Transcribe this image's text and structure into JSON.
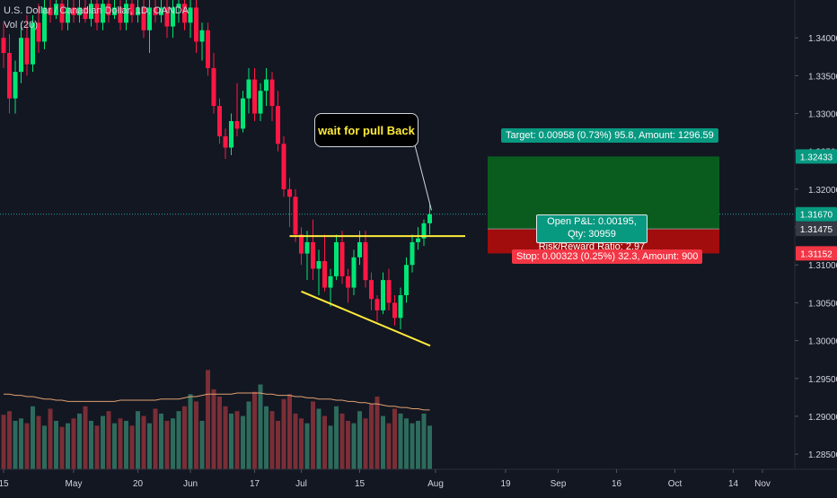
{
  "legend": {
    "symbol": "U.S. Dollar / Canadian Dollar, 1D, OANDA",
    "indicator": "Vol (20)"
  },
  "annotation": "wait for pull Back",
  "position": {
    "target_label": "Target: 0.00958 (0.73%) 95.8, Amount: 1296.59",
    "stop_label": "Stop: 0.00323 (0.25%) 32.3, Amount: 900",
    "pnl_label": "Open P&L: 0.00195, Qty: 30959",
    "rr_label": "Risk/Reward Ratio: 2.97",
    "target_price": 1.32433,
    "entry_price": 1.31475,
    "stop_price": 1.31152,
    "current_price": 1.3167
  },
  "colors": {
    "background": "#131722",
    "up": "#26a69a",
    "up_bright": "#00e676",
    "down": "#ef5350",
    "down_bright": "#ff1744",
    "text": "#d1d4dc",
    "yellow": "#ffeb3b",
    "target_zone": "#0a5c1e",
    "stop_zone": "#a10d0d",
    "vol_ma": "#e0a070"
  },
  "chart_data": {
    "type": "candlestick",
    "title": "U.S. Dollar / Canadian Dollar, 1D, OANDA",
    "ylim": [
      1.283,
      1.345
    ],
    "y_ticks": [
      "1.34000",
      "1.33500",
      "1.33000",
      "1.32500",
      "1.32000",
      "1.31500",
      "1.31000",
      "1.30500",
      "1.30000",
      "1.29500",
      "1.29000",
      "1.28500"
    ],
    "x_ticks": [
      {
        "label": "15",
        "index": 0
      },
      {
        "label": "May",
        "index": 12
      },
      {
        "label": "20",
        "index": 23
      },
      {
        "label": "Jun",
        "index": 32
      },
      {
        "label": "17",
        "index": 43
      },
      {
        "label": "Jul",
        "index": 51
      },
      {
        "label": "15",
        "index": 61
      },
      {
        "label": "Aug",
        "index": 74
      },
      {
        "label": "19",
        "index": 86
      },
      {
        "label": "Sep",
        "index": 95
      },
      {
        "label": "16",
        "index": 105
      },
      {
        "label": "Oct",
        "index": 115
      },
      {
        "label": "14",
        "index": 125
      },
      {
        "label": "Nov",
        "index": 130
      }
    ],
    "slot_count": 135,
    "candles": [
      [
        1.34,
        1.342,
        1.336,
        1.338
      ],
      [
        1.338,
        1.3405,
        1.33,
        1.332
      ],
      [
        1.332,
        1.337,
        1.33,
        1.3355
      ],
      [
        1.3355,
        1.342,
        1.334,
        1.34
      ],
      [
        1.34,
        1.343,
        1.335,
        1.3365
      ],
      [
        1.3365,
        1.343,
        1.3355,
        1.342
      ],
      [
        1.342,
        1.3445,
        1.338,
        1.3395
      ],
      [
        1.3395,
        1.345,
        1.3385,
        1.344
      ],
      [
        1.344,
        1.345,
        1.342,
        1.343
      ],
      [
        1.343,
        1.345,
        1.3425,
        1.3445
      ],
      [
        1.3445,
        1.345,
        1.341,
        1.342
      ],
      [
        1.342,
        1.345,
        1.341,
        1.344
      ],
      [
        1.344,
        1.345,
        1.342,
        1.343
      ],
      [
        1.343,
        1.345,
        1.342,
        1.344
      ],
      [
        1.344,
        1.345,
        1.342,
        1.3425
      ],
      [
        1.3425,
        1.345,
        1.3415,
        1.3445
      ],
      [
        1.3445,
        1.345,
        1.341,
        1.342
      ],
      [
        1.342,
        1.345,
        1.341,
        1.3445
      ],
      [
        1.3445,
        1.345,
        1.342,
        1.343
      ],
      [
        1.343,
        1.345,
        1.3425,
        1.344
      ],
      [
        1.344,
        1.345,
        1.341,
        1.342
      ],
      [
        1.342,
        1.345,
        1.341,
        1.3445
      ],
      [
        1.3445,
        1.345,
        1.342,
        1.343
      ],
      [
        1.343,
        1.345,
        1.342,
        1.344
      ],
      [
        1.344,
        1.345,
        1.34,
        1.341
      ],
      [
        1.341,
        1.345,
        1.338,
        1.344
      ],
      [
        1.344,
        1.345,
        1.342,
        1.343
      ],
      [
        1.343,
        1.345,
        1.342,
        1.344
      ],
      [
        1.344,
        1.345,
        1.34,
        1.3415
      ],
      [
        1.3415,
        1.345,
        1.34,
        1.344
      ],
      [
        1.344,
        1.345,
        1.342,
        1.3445
      ],
      [
        1.3445,
        1.345,
        1.341,
        1.342
      ],
      [
        1.342,
        1.345,
        1.34,
        1.344
      ],
      [
        1.344,
        1.345,
        1.338,
        1.3395
      ],
      [
        1.3395,
        1.342,
        1.337,
        1.341
      ],
      [
        1.341,
        1.342,
        1.335,
        1.336
      ],
      [
        1.336,
        1.338,
        1.33,
        1.331
      ],
      [
        1.331,
        1.332,
        1.326,
        1.327
      ],
      [
        1.327,
        1.328,
        1.324,
        1.3255
      ],
      [
        1.3255,
        1.33,
        1.3245,
        1.329
      ],
      [
        1.329,
        1.334,
        1.327,
        1.328
      ],
      [
        1.328,
        1.333,
        1.3275,
        1.332
      ],
      [
        1.332,
        1.336,
        1.33,
        1.3345
      ],
      [
        1.3345,
        1.336,
        1.329,
        1.33
      ],
      [
        1.33,
        1.334,
        1.329,
        1.333
      ],
      [
        1.333,
        1.336,
        1.331,
        1.3345
      ],
      [
        1.3345,
        1.3355,
        1.329,
        1.331
      ],
      [
        1.331,
        1.333,
        1.325,
        1.326
      ],
      [
        1.326,
        1.327,
        1.319,
        1.32
      ],
      [
        1.32,
        1.3215,
        1.315,
        1.319
      ],
      [
        1.319,
        1.32,
        1.313,
        1.314
      ],
      [
        1.314,
        1.315,
        1.31,
        1.3115
      ],
      [
        1.3115,
        1.3145,
        1.308,
        1.313
      ],
      [
        1.313,
        1.316,
        1.308,
        1.3095
      ],
      [
        1.3095,
        1.312,
        1.306,
        1.3105
      ],
      [
        1.3105,
        1.314,
        1.3065,
        1.307
      ],
      [
        1.307,
        1.3095,
        1.3045,
        1.3085
      ],
      [
        1.3085,
        1.314,
        1.308,
        1.313
      ],
      [
        1.313,
        1.3145,
        1.3075,
        1.3085
      ],
      [
        1.3085,
        1.3095,
        1.305,
        1.307
      ],
      [
        1.307,
        1.312,
        1.306,
        1.311
      ],
      [
        1.311,
        1.3145,
        1.31,
        1.313
      ],
      [
        1.313,
        1.3145,
        1.307,
        1.308
      ],
      [
        1.308,
        1.309,
        1.304,
        1.3055
      ],
      [
        1.3055,
        1.306,
        1.3025,
        1.304
      ],
      [
        1.304,
        1.309,
        1.3035,
        1.308
      ],
      [
        1.308,
        1.3095,
        1.304,
        1.305
      ],
      [
        1.305,
        1.306,
        1.302,
        1.303
      ],
      [
        1.303,
        1.307,
        1.3015,
        1.306
      ],
      [
        1.306,
        1.311,
        1.305,
        1.31
      ],
      [
        1.31,
        1.314,
        1.309,
        1.313
      ],
      [
        1.313,
        1.315,
        1.312,
        1.3135
      ],
      [
        1.3135,
        1.316,
        1.3125,
        1.3155
      ],
      [
        1.3155,
        1.318,
        1.314,
        1.3167
      ]
    ],
    "volume": [
      0.45,
      0.48,
      0.4,
      0.42,
      0.38,
      0.52,
      0.44,
      0.36,
      0.5,
      0.4,
      0.35,
      0.38,
      0.42,
      0.46,
      0.52,
      0.4,
      0.36,
      0.44,
      0.48,
      0.38,
      0.42,
      0.4,
      0.36,
      0.48,
      0.44,
      0.38,
      0.5,
      0.46,
      0.4,
      0.42,
      0.48,
      0.52,
      0.62,
      0.56,
      0.4,
      0.82,
      0.66,
      0.6,
      0.52,
      0.46,
      0.48,
      0.44,
      0.56,
      0.64,
      0.7,
      0.52,
      0.48,
      0.4,
      0.58,
      0.62,
      0.46,
      0.42,
      0.38,
      0.56,
      0.5,
      0.44,
      0.36,
      0.52,
      0.46,
      0.4,
      0.38,
      0.48,
      0.42,
      0.54,
      0.6,
      0.44,
      0.38,
      0.5,
      0.46,
      0.42,
      0.38,
      0.4,
      0.46,
      0.36
    ],
    "volume_ma": [
      0.62,
      0.62,
      0.61,
      0.61,
      0.6,
      0.6,
      0.59,
      0.58,
      0.58,
      0.57,
      0.57,
      0.56,
      0.56,
      0.56,
      0.56,
      0.56,
      0.56,
      0.56,
      0.56,
      0.56,
      0.57,
      0.57,
      0.57,
      0.57,
      0.57,
      0.57,
      0.57,
      0.58,
      0.58,
      0.58,
      0.58,
      0.59,
      0.6,
      0.6,
      0.61,
      0.62,
      0.62,
      0.62,
      0.62,
      0.62,
      0.63,
      0.63,
      0.63,
      0.63,
      0.63,
      0.62,
      0.62,
      0.61,
      0.61,
      0.61,
      0.6,
      0.6,
      0.59,
      0.59,
      0.58,
      0.58,
      0.58,
      0.57,
      0.57,
      0.56,
      0.56,
      0.55,
      0.55,
      0.54,
      0.54,
      0.53,
      0.52,
      0.52,
      0.51,
      0.51,
      0.5,
      0.5,
      0.49,
      0.49
    ],
    "resistance_line": {
      "from": [
        49,
        1.3138
      ],
      "to": [
        73,
        1.3138
      ]
    },
    "support_line": {
      "from": [
        51,
        1.3065
      ],
      "to": [
        70,
        1.2998
      ]
    },
    "callout_pointer": {
      "to": [
        73,
        1.3165
      ]
    }
  }
}
